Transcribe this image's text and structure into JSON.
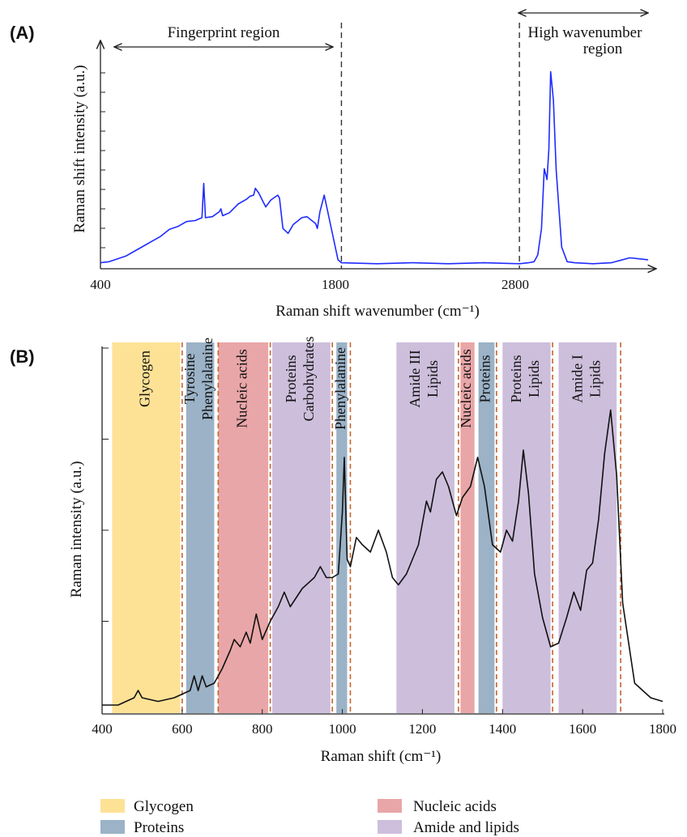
{
  "chart_data": [
    {
      "panel": "(A)",
      "type": "line",
      "xlabel": "Raman shift wavenumber (cm⁻¹)",
      "ylabel": "Raman shift intensity (a.u.)",
      "x_ticks": [
        "400",
        "1800",
        "2800"
      ],
      "annotations": {
        "fingerprint": "Fingerprint region",
        "high_wn_line1": "High wavenumber",
        "high_wn_line2": "region"
      },
      "divider_x": [
        1800,
        2800
      ],
      "x_axis_breakpoints": [
        [
          400,
          0
        ],
        [
          1800,
          0.44
        ],
        [
          2800,
          0.765
        ],
        [
          3500,
          1
        ]
      ],
      "ylim": [
        0,
        1
      ],
      "series": [
        {
          "color": "#1f2bff",
          "x": [
            400,
            450,
            500,
            550,
            600,
            650,
            700,
            750,
            800,
            850,
            900,
            950,
            990,
            1000,
            1010,
            1050,
            1090,
            1100,
            1110,
            1150,
            1200,
            1250,
            1270,
            1290,
            1300,
            1320,
            1340,
            1360,
            1390,
            1430,
            1440,
            1460,
            1490,
            1520,
            1570,
            1600,
            1650,
            1660,
            1675,
            1700,
            1740,
            1780,
            1800,
            2000,
            2200,
            2400,
            2600,
            2800,
            2850,
            2880,
            2900,
            2920,
            2935,
            2950,
            2960,
            2970,
            2985,
            3000,
            3030,
            3060,
            3100,
            3200,
            3300,
            3400,
            3450,
            3500
          ],
          "y": [
            0.02,
            0.03,
            0.04,
            0.06,
            0.08,
            0.11,
            0.13,
            0.16,
            0.19,
            0.21,
            0.23,
            0.24,
            0.25,
            0.43,
            0.25,
            0.26,
            0.28,
            0.3,
            0.26,
            0.28,
            0.32,
            0.35,
            0.36,
            0.37,
            0.4,
            0.38,
            0.34,
            0.31,
            0.34,
            0.37,
            0.35,
            0.2,
            0.17,
            0.22,
            0.25,
            0.26,
            0.22,
            0.2,
            0.28,
            0.37,
            0.2,
            0.04,
            0.02,
            0.02,
            0.02,
            0.02,
            0.02,
            0.02,
            0.02,
            0.03,
            0.06,
            0.2,
            0.5,
            0.45,
            0.6,
            1.0,
            0.85,
            0.5,
            0.1,
            0.03,
            0.02,
            0.02,
            0.02,
            0.05,
            0.04,
            0.04
          ]
        }
      ]
    },
    {
      "panel": "(B)",
      "type": "line",
      "xlabel": "Raman shift (cm⁻¹)",
      "ylabel": "Raman intensity (a.u.)",
      "xlim": [
        400,
        1800
      ],
      "ylim": [
        0,
        1
      ],
      "x_ticks": [
        "400",
        "600",
        "800",
        "1000",
        "1200",
        "1400",
        "1600",
        "1800"
      ],
      "bands": [
        {
          "x0": 425,
          "x1": 595,
          "lines": [
            "Glycogen"
          ],
          "category": "glycogen"
        },
        {
          "x0": 610,
          "x1": 680,
          "lines": [
            "Tyrosine",
            "Phenylalanine"
          ],
          "category": "proteins"
        },
        {
          "x0": 690,
          "x1": 815,
          "lines": [
            "Nucleic acids"
          ],
          "category": "nucleic"
        },
        {
          "x0": 825,
          "x1": 970,
          "lines": [
            "Proteins",
            "Carbohydrates"
          ],
          "category": "amide"
        },
        {
          "x0": 985,
          "x1": 1012,
          "lines": [
            "Phenylalanine"
          ],
          "category": "proteins"
        },
        {
          "x0": 1135,
          "x1": 1280,
          "lines": [
            "Amide III",
            "Lipids"
          ],
          "category": "amide"
        },
        {
          "x0": 1295,
          "x1": 1330,
          "lines": [
            "Nucleic acids"
          ],
          "category": "nucleic"
        },
        {
          "x0": 1340,
          "x1": 1380,
          "lines": [
            "Proteins"
          ],
          "category": "proteins"
        },
        {
          "x0": 1400,
          "x1": 1520,
          "lines": [
            "Proteins",
            "Lipids"
          ],
          "category": "amide"
        },
        {
          "x0": 1540,
          "x1": 1685,
          "lines": [
            "Amide I",
            "Lipids"
          ],
          "category": "amide"
        }
      ],
      "band_lines_x": [
        600,
        690,
        820,
        975,
        1020,
        1290,
        1385,
        1525,
        1695
      ],
      "series": [
        {
          "color": "#111111",
          "x": [
            400,
            440,
            480,
            490,
            500,
            540,
            580,
            600,
            620,
            630,
            640,
            650,
            660,
            680,
            700,
            720,
            730,
            745,
            760,
            770,
            785,
            800,
            820,
            840,
            855,
            870,
            900,
            930,
            945,
            960,
            975,
            990,
            1000,
            1005,
            1012,
            1020,
            1035,
            1050,
            1070,
            1090,
            1110,
            1125,
            1140,
            1160,
            1175,
            1190,
            1210,
            1220,
            1235,
            1250,
            1265,
            1285,
            1300,
            1320,
            1338,
            1355,
            1375,
            1395,
            1410,
            1425,
            1440,
            1452,
            1465,
            1480,
            1500,
            1520,
            1540,
            1560,
            1578,
            1595,
            1610,
            1625,
            1640,
            1655,
            1670,
            1685,
            1700,
            1730,
            1770,
            1800
          ],
          "y": [
            0.02,
            0.02,
            0.04,
            0.06,
            0.04,
            0.03,
            0.04,
            0.05,
            0.06,
            0.1,
            0.06,
            0.1,
            0.07,
            0.08,
            0.12,
            0.17,
            0.2,
            0.18,
            0.22,
            0.19,
            0.27,
            0.2,
            0.25,
            0.29,
            0.33,
            0.29,
            0.34,
            0.37,
            0.4,
            0.37,
            0.37,
            0.38,
            0.55,
            0.7,
            0.42,
            0.4,
            0.48,
            0.46,
            0.44,
            0.5,
            0.44,
            0.37,
            0.35,
            0.38,
            0.42,
            0.46,
            0.58,
            0.55,
            0.64,
            0.66,
            0.62,
            0.54,
            0.59,
            0.62,
            0.7,
            0.62,
            0.46,
            0.44,
            0.5,
            0.47,
            0.58,
            0.72,
            0.6,
            0.38,
            0.26,
            0.18,
            0.19,
            0.26,
            0.33,
            0.28,
            0.39,
            0.41,
            0.53,
            0.71,
            0.83,
            0.65,
            0.3,
            0.08,
            0.04,
            0.03
          ]
        }
      ]
    }
  ],
  "legend": [
    {
      "label": "Glycogen",
      "color": "#fde296"
    },
    {
      "label": "Nucleic acids",
      "color": "#e9a6a8"
    },
    {
      "label": "Proteins",
      "color": "#9bb2c7"
    },
    {
      "label": "Amide and lipids",
      "color": "#cdbfdc"
    }
  ]
}
